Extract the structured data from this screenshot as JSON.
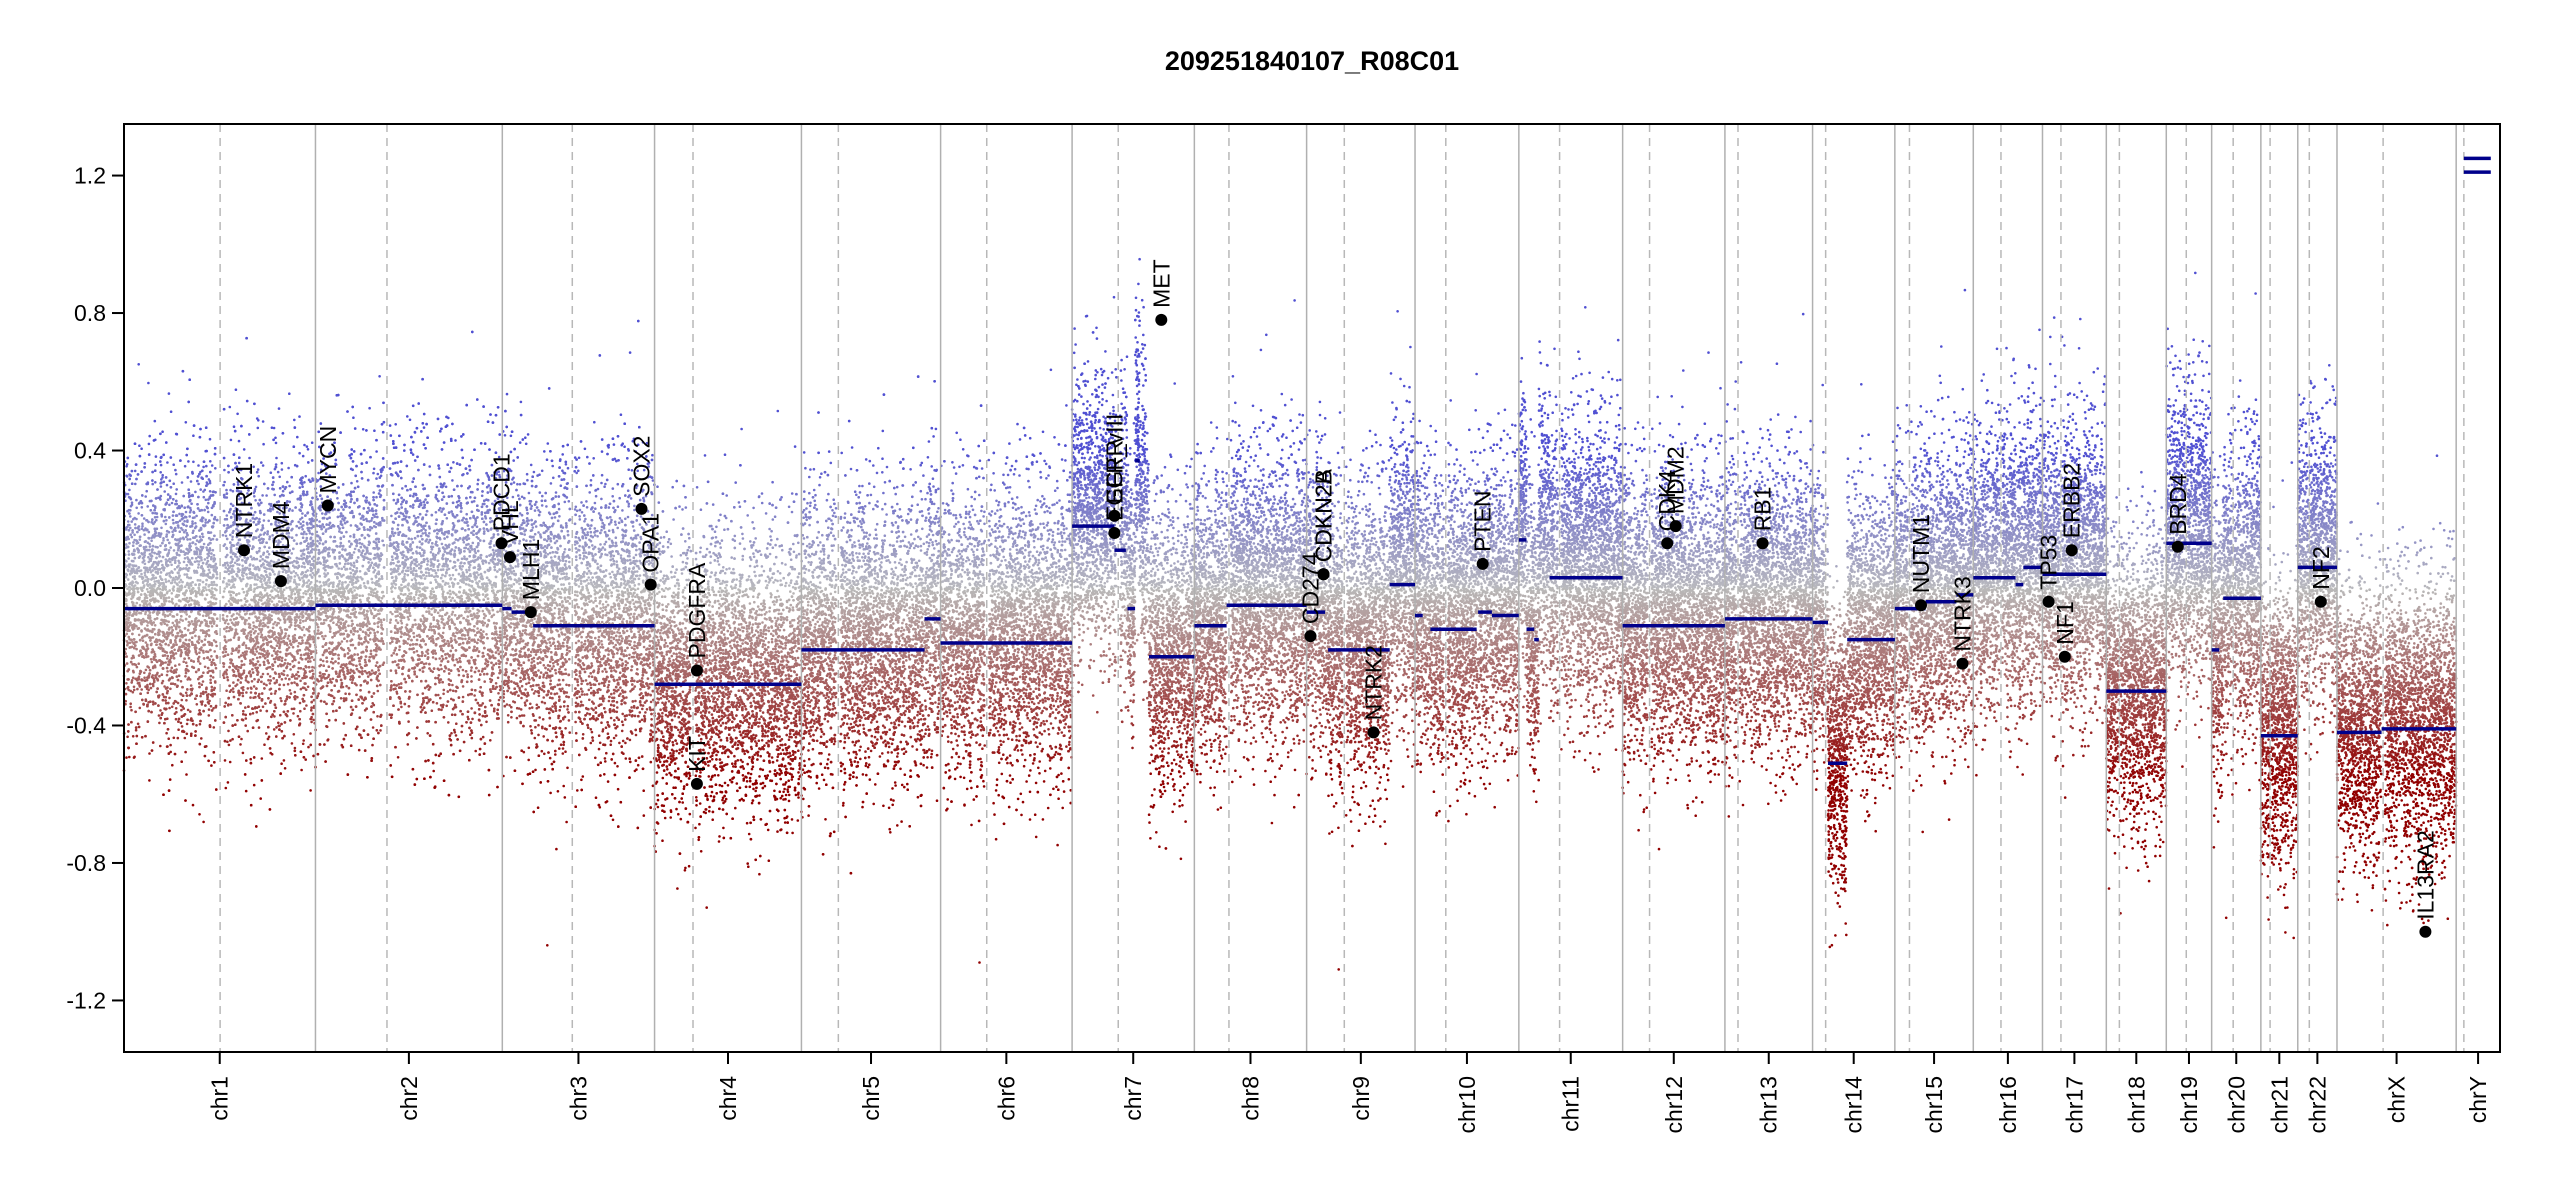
{
  "chart_data": {
    "type": "scatter",
    "title": "209251840107_R08C01",
    "xlabel": "",
    "ylabel": "",
    "ylim": [
      -1.35,
      1.35
    ],
    "yticks": [
      -1.2,
      -0.8,
      -0.4,
      0.0,
      0.4,
      0.8,
      1.2
    ],
    "ytick_labels": [
      "-1.2",
      "-0.8",
      "-0.4",
      "0.0",
      "0.4",
      "0.8",
      "1.2"
    ],
    "colors": {
      "segment": "#00008b",
      "gain": "#5050c8",
      "loss": "#9b0000",
      "neutral": "#b4b4b4",
      "point": "#000000"
    },
    "chromosomes": [
      {
        "name": "chr1",
        "size": 249,
        "centromere": 125
      },
      {
        "name": "chr2",
        "size": 243,
        "centromere": 93
      },
      {
        "name": "chr3",
        "size": 198,
        "centromere": 91
      },
      {
        "name": "chr4",
        "size": 191,
        "centromere": 50
      },
      {
        "name": "chr5",
        "size": 181,
        "centromere": 48
      },
      {
        "name": "chr6",
        "size": 171,
        "centromere": 60
      },
      {
        "name": "chr7",
        "size": 159,
        "centromere": 60
      },
      {
        "name": "chr8",
        "size": 146,
        "centromere": 45
      },
      {
        "name": "chr9",
        "size": 141,
        "centromere": 49
      },
      {
        "name": "chr10",
        "size": 135,
        "centromere": 40
      },
      {
        "name": "chr11",
        "size": 135,
        "centromere": 53
      },
      {
        "name": "chr12",
        "size": 133,
        "centromere": 35
      },
      {
        "name": "chr13",
        "size": 114,
        "centromere": 17
      },
      {
        "name": "chr14",
        "size": 107,
        "centromere": 17
      },
      {
        "name": "chr15",
        "size": 102,
        "centromere": 19
      },
      {
        "name": "chr16",
        "size": 90,
        "centromere": 36
      },
      {
        "name": "chr17",
        "size": 83,
        "centromere": 24
      },
      {
        "name": "chr18",
        "size": 78,
        "centromere": 17
      },
      {
        "name": "chr19",
        "size": 59,
        "centromere": 26
      },
      {
        "name": "chr20",
        "size": 64,
        "centromere": 28
      },
      {
        "name": "chr21",
        "size": 48,
        "centromere": 12
      },
      {
        "name": "chr22",
        "size": 51,
        "centromere": 15
      },
      {
        "name": "chrX",
        "size": 155,
        "centromere": 60
      },
      {
        "name": "chrY",
        "size": 57,
        "centromere": 10
      }
    ],
    "segments": [
      {
        "chr": "chr1",
        "start": 0,
        "end": 249,
        "value": -0.06
      },
      {
        "chr": "chr2",
        "start": 0,
        "end": 243,
        "value": -0.05
      },
      {
        "chr": "chr3",
        "start": 0,
        "end": 12,
        "value": -0.06
      },
      {
        "chr": "chr3",
        "start": 12,
        "end": 40,
        "value": -0.07
      },
      {
        "chr": "chr3",
        "start": 40,
        "end": 50,
        "value": -0.11
      },
      {
        "chr": "chr3",
        "start": 50,
        "end": 198,
        "value": -0.11
      },
      {
        "chr": "chr4",
        "start": 0,
        "end": 191,
        "value": -0.28
      },
      {
        "chr": "chr5",
        "start": 0,
        "end": 160,
        "value": -0.18
      },
      {
        "chr": "chr5",
        "start": 160,
        "end": 181,
        "value": -0.09
      },
      {
        "chr": "chr6",
        "start": 0,
        "end": 171,
        "value": -0.16
      },
      {
        "chr": "chr7",
        "start": 0,
        "end": 55,
        "value": 0.18
      },
      {
        "chr": "chr7",
        "start": 55,
        "end": 70,
        "value": 0.11
      },
      {
        "chr": "chr7",
        "start": 72,
        "end": 82,
        "value": -0.06
      },
      {
        "chr": "chr7",
        "start": 82,
        "end": 88,
        "value": 0.37
      },
      {
        "chr": "chr7",
        "start": 100,
        "end": 159,
        "value": -0.2
      },
      {
        "chr": "chr8",
        "start": 0,
        "end": 42,
        "value": -0.11
      },
      {
        "chr": "chr8",
        "start": 42,
        "end": 146,
        "value": -0.05
      },
      {
        "chr": "chr9",
        "start": 0,
        "end": 24,
        "value": -0.07
      },
      {
        "chr": "chr9",
        "start": 28,
        "end": 38,
        "value": -0.18
      },
      {
        "chr": "chr9",
        "start": 38,
        "end": 108,
        "value": -0.18
      },
      {
        "chr": "chr9",
        "start": 108,
        "end": 141,
        "value": 0.01
      },
      {
        "chr": "chr10",
        "start": 0,
        "end": 10,
        "value": -0.08
      },
      {
        "chr": "chr10",
        "start": 20,
        "end": 80,
        "value": -0.12
      },
      {
        "chr": "chr10",
        "start": 82,
        "end": 100,
        "value": -0.07
      },
      {
        "chr": "chr10",
        "start": 100,
        "end": 135,
        "value": -0.08
      },
      {
        "chr": "chr11",
        "start": 0,
        "end": 10,
        "value": 0.14
      },
      {
        "chr": "chr11",
        "start": 10,
        "end": 20,
        "value": -0.12
      },
      {
        "chr": "chr11",
        "start": 20,
        "end": 26,
        "value": -0.15
      },
      {
        "chr": "chr11",
        "start": 40,
        "end": 135,
        "value": 0.03
      },
      {
        "chr": "chr12",
        "start": 0,
        "end": 133,
        "value": -0.11
      },
      {
        "chr": "chr13",
        "start": 0,
        "end": 114,
        "value": -0.09
      },
      {
        "chr": "chr14",
        "start": 0,
        "end": 20,
        "value": -0.1
      },
      {
        "chr": "chr14",
        "start": 20,
        "end": 45,
        "value": -0.51
      },
      {
        "chr": "chr14",
        "start": 45,
        "end": 107,
        "value": -0.15
      },
      {
        "chr": "chr15",
        "start": 0,
        "end": 40,
        "value": -0.06
      },
      {
        "chr": "chr15",
        "start": 40,
        "end": 80,
        "value": -0.04
      },
      {
        "chr": "chr15",
        "start": 80,
        "end": 102,
        "value": -0.02
      },
      {
        "chr": "chr16",
        "start": 0,
        "end": 55,
        "value": 0.03
      },
      {
        "chr": "chr16",
        "start": 55,
        "end": 65,
        "value": 0.01
      },
      {
        "chr": "chr16",
        "start": 65,
        "end": 90,
        "value": 0.06
      },
      {
        "chr": "chr17",
        "start": 0,
        "end": 83,
        "value": 0.04
      },
      {
        "chr": "chr18",
        "start": 0,
        "end": 78,
        "value": -0.3
      },
      {
        "chr": "chr19",
        "start": 0,
        "end": 59,
        "value": 0.13
      },
      {
        "chr": "chr20",
        "start": 0,
        "end": 10,
        "value": -0.18
      },
      {
        "chr": "chr20",
        "start": 15,
        "end": 64,
        "value": -0.03
      },
      {
        "chr": "chr21",
        "start": 0,
        "end": 48,
        "value": -0.43
      },
      {
        "chr": "chr22",
        "start": 0,
        "end": 51,
        "value": 0.06
      },
      {
        "chr": "chrX",
        "start": 0,
        "end": 58,
        "value": -0.42
      },
      {
        "chr": "chrX",
        "start": 58,
        "end": 155,
        "value": -0.41
      },
      {
        "chr": "chrY",
        "start": 10,
        "end": 45,
        "value": 1.25
      },
      {
        "chr": "chrY",
        "start": 10,
        "end": 45,
        "value": 1.21
      }
    ],
    "genes": [
      {
        "name": "NTRK1",
        "chr": "chr1",
        "pos": 156,
        "value": 0.11
      },
      {
        "name": "MDM4",
        "chr": "chr1",
        "pos": 204,
        "value": 0.02
      },
      {
        "name": "MYCN",
        "chr": "chr2",
        "pos": 16,
        "value": 0.24
      },
      {
        "name": "PDCD1",
        "chr": "chr2",
        "pos": 242,
        "value": 0.13
      },
      {
        "name": "VHL",
        "chr": "chr3",
        "pos": 10,
        "value": 0.09
      },
      {
        "name": "MLH1",
        "chr": "chr3",
        "pos": 37,
        "value": -0.07
      },
      {
        "name": "SOX2",
        "chr": "chr3",
        "pos": 181,
        "value": 0.23
      },
      {
        "name": "OPA1",
        "chr": "chr3",
        "pos": 193,
        "value": 0.01
      },
      {
        "name": "PDGFRA",
        "chr": "chr4",
        "pos": 55,
        "value": -0.24
      },
      {
        "name": "KIT",
        "chr": "chr4",
        "pos": 55,
        "value": -0.57
      },
      {
        "name": "EGFR",
        "chr": "chr7",
        "pos": 55,
        "value": 0.21
      },
      {
        "name": "EGFR_vIII",
        "chr": "chr7",
        "pos": 55,
        "value": 0.16
      },
      {
        "name": "MET",
        "chr": "chr7",
        "pos": 116,
        "value": 0.78
      },
      {
        "name": "CD274",
        "chr": "chr9",
        "pos": 5,
        "value": -0.14
      },
      {
        "name": "CDKN2A",
        "chr": "chr9",
        "pos": 22,
        "value": 0.04
      },
      {
        "name": "CDKN2B",
        "chr": "chr9",
        "pos": 22,
        "value": 0.04
      },
      {
        "name": "NTRK2",
        "chr": "chr9",
        "pos": 87,
        "value": -0.42
      },
      {
        "name": "PTEN",
        "chr": "chr10",
        "pos": 88,
        "value": 0.07
      },
      {
        "name": "CDK4",
        "chr": "chr12",
        "pos": 58,
        "value": 0.13
      },
      {
        "name": "MDM2",
        "chr": "chr12",
        "pos": 69,
        "value": 0.18
      },
      {
        "name": "RB1",
        "chr": "chr13",
        "pos": 49,
        "value": 0.13
      },
      {
        "name": "NUTM1",
        "chr": "chr15",
        "pos": 34,
        "value": -0.05
      },
      {
        "name": "NTRK3",
        "chr": "chr15",
        "pos": 88,
        "value": -0.22
      },
      {
        "name": "TP53",
        "chr": "chr17",
        "pos": 8,
        "value": -0.04
      },
      {
        "name": "NF1",
        "chr": "chr17",
        "pos": 29,
        "value": -0.2
      },
      {
        "name": "ERBB2",
        "chr": "chr17",
        "pos": 38,
        "value": 0.11
      },
      {
        "name": "BRD4",
        "chr": "chr19",
        "pos": 15,
        "value": 0.12
      },
      {
        "name": "NF2",
        "chr": "chr22",
        "pos": 30,
        "value": -0.04
      },
      {
        "name": "IL13RA2",
        "chr": "chrX",
        "pos": 115,
        "value": -1.0
      }
    ]
  }
}
